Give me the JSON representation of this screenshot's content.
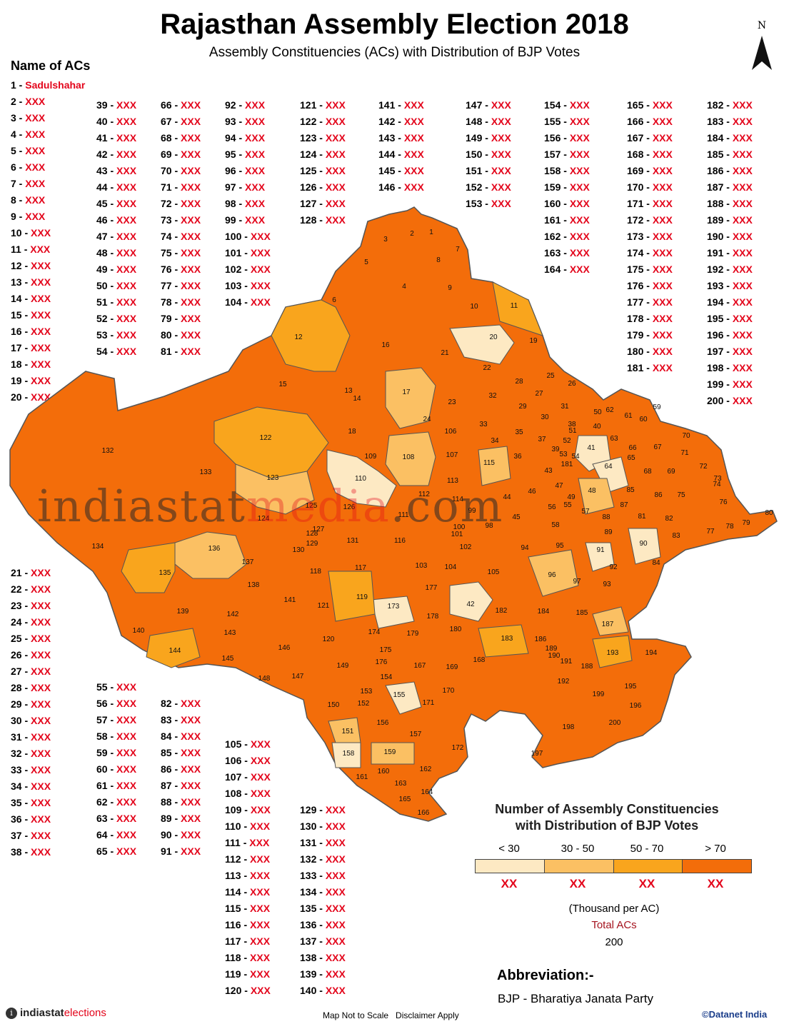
{
  "header": {
    "title": "Rajasthan Assembly Election 2018",
    "subtitle": "Assembly Constituencies (ACs) with Distribution of BJP Votes"
  },
  "compass": {
    "label": "N"
  },
  "ac_list": {
    "heading": "Name of ACs",
    "first_entry": {
      "num": "1",
      "name": "Sadulshahar"
    },
    "placeholder_name": "XXX"
  },
  "legend": {
    "title_line1": "Number of Assembly Constituencies",
    "title_line2": "with Distribution of BJP Votes",
    "classes": [
      {
        "range": "< 30",
        "count": "XX",
        "color": "#fde9c3"
      },
      {
        "range": "30 - 50",
        "count": "XX",
        "color": "#fbc063"
      },
      {
        "range": "50 - 70",
        "count": "XX",
        "color": "#f9a51d"
      },
      {
        "range": "> 70",
        "count": "XX",
        "color": "#f36d0a"
      }
    ],
    "unit": "(Thousand per AC)",
    "total_label": "Total ACs",
    "total_value": "200"
  },
  "abbreviation": {
    "heading": "Abbreviation:-",
    "text": "BJP  - Bharatiya Janata Party"
  },
  "footer": {
    "logo_mark": "i",
    "logo_brand": "indiastat",
    "logo_suffix": "elections",
    "note": "Map Not to Scale   Disclaimer Apply",
    "copyright": "©Datanet India"
  },
  "watermark": {
    "brand": "indiastat",
    "suffix": "media",
    "domain": ".com"
  }
}
